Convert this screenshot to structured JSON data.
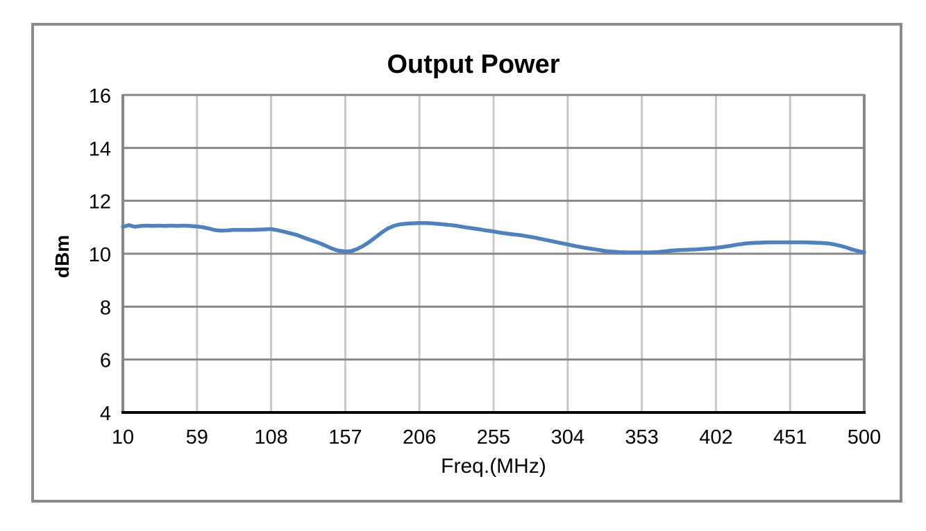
{
  "chart_data": {
    "type": "line",
    "title": "Output Power",
    "xlabel": "Freq.(MHz)",
    "ylabel": "dBm",
    "xlim": [
      10,
      500
    ],
    "ylim": [
      4,
      16
    ],
    "x_ticks": [
      10,
      59,
      108,
      157,
      206,
      255,
      304,
      353,
      402,
      451,
      500
    ],
    "y_ticks": [
      16,
      14,
      12,
      10,
      8,
      6,
      4
    ],
    "grid": "both",
    "legend_position": "none",
    "series": [
      {
        "name": "Output Power",
        "color": "#4f81bd",
        "points": [
          [
            10,
            11.02
          ],
          [
            14,
            11.08
          ],
          [
            18,
            11.02
          ],
          [
            22,
            11.05
          ],
          [
            26,
            11.06
          ],
          [
            30,
            11.05
          ],
          [
            34,
            11.06
          ],
          [
            38,
            11.05
          ],
          [
            42,
            11.06
          ],
          [
            46,
            11.05
          ],
          [
            50,
            11.06
          ],
          [
            54,
            11.05
          ],
          [
            59,
            11.03
          ],
          [
            63,
            11.0
          ],
          [
            67,
            10.95
          ],
          [
            71,
            10.89
          ],
          [
            75,
            10.87
          ],
          [
            79,
            10.88
          ],
          [
            83,
            10.9
          ],
          [
            87,
            10.9
          ],
          [
            91,
            10.9
          ],
          [
            95,
            10.9
          ],
          [
            100,
            10.91
          ],
          [
            104,
            10.92
          ],
          [
            108,
            10.93
          ],
          [
            112,
            10.89
          ],
          [
            116,
            10.84
          ],
          [
            120,
            10.78
          ],
          [
            125,
            10.71
          ],
          [
            130,
            10.6
          ],
          [
            135,
            10.5
          ],
          [
            140,
            10.4
          ],
          [
            144,
            10.3
          ],
          [
            148,
            10.2
          ],
          [
            152,
            10.12
          ],
          [
            157,
            10.08
          ],
          [
            161,
            10.1
          ],
          [
            165,
            10.18
          ],
          [
            169,
            10.3
          ],
          [
            173,
            10.45
          ],
          [
            177,
            10.62
          ],
          [
            181,
            10.8
          ],
          [
            185,
            10.95
          ],
          [
            189,
            11.05
          ],
          [
            193,
            11.11
          ],
          [
            198,
            11.14
          ],
          [
            202,
            11.15
          ],
          [
            206,
            11.16
          ],
          [
            210,
            11.16
          ],
          [
            214,
            11.15
          ],
          [
            218,
            11.13
          ],
          [
            222,
            11.11
          ],
          [
            227,
            11.08
          ],
          [
            231,
            11.05
          ],
          [
            236,
            11.0
          ],
          [
            240,
            10.97
          ],
          [
            245,
            10.93
          ],
          [
            250,
            10.88
          ],
          [
            255,
            10.84
          ],
          [
            259,
            10.8
          ],
          [
            264,
            10.76
          ],
          [
            268,
            10.73
          ],
          [
            273,
            10.7
          ],
          [
            278,
            10.65
          ],
          [
            283,
            10.6
          ],
          [
            288,
            10.54
          ],
          [
            294,
            10.47
          ],
          [
            299,
            10.41
          ],
          [
            304,
            10.35
          ],
          [
            309,
            10.29
          ],
          [
            313,
            10.25
          ],
          [
            318,
            10.2
          ],
          [
            324,
            10.15
          ],
          [
            329,
            10.1
          ],
          [
            333,
            10.08
          ],
          [
            338,
            10.06
          ],
          [
            343,
            10.05
          ],
          [
            348,
            10.05
          ],
          [
            353,
            10.05
          ],
          [
            358,
            10.05
          ],
          [
            363,
            10.06
          ],
          [
            368,
            10.09
          ],
          [
            373,
            10.12
          ],
          [
            378,
            10.14
          ],
          [
            383,
            10.15
          ],
          [
            388,
            10.16
          ],
          [
            393,
            10.18
          ],
          [
            398,
            10.2
          ],
          [
            402,
            10.22
          ],
          [
            407,
            10.26
          ],
          [
            412,
            10.3
          ],
          [
            417,
            10.35
          ],
          [
            422,
            10.39
          ],
          [
            427,
            10.41
          ],
          [
            432,
            10.42
          ],
          [
            437,
            10.43
          ],
          [
            442,
            10.43
          ],
          [
            447,
            10.43
          ],
          [
            451,
            10.43
          ],
          [
            456,
            10.43
          ],
          [
            461,
            10.43
          ],
          [
            466,
            10.42
          ],
          [
            471,
            10.41
          ],
          [
            476,
            10.39
          ],
          [
            480,
            10.35
          ],
          [
            484,
            10.3
          ],
          [
            488,
            10.24
          ],
          [
            492,
            10.16
          ],
          [
            496,
            10.1
          ],
          [
            500,
            10.05
          ]
        ]
      }
    ]
  },
  "colors": {
    "series_blue": "#4f81bd",
    "grid_dark": "#878787",
    "grid_light": "#c8c8c8",
    "axis_black": "#000000",
    "frame_gray": "#8a8a8a",
    "text": "#000000"
  }
}
